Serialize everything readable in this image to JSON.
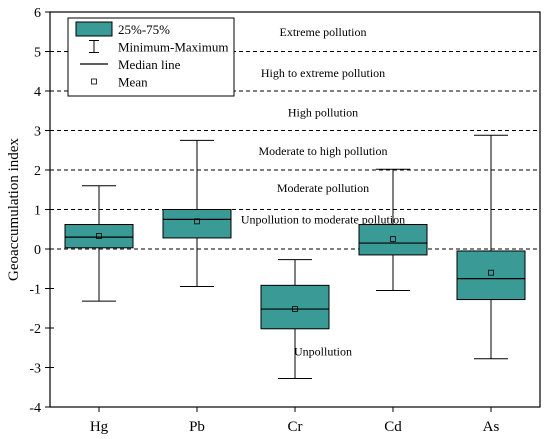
{
  "chart_data": {
    "type": "box",
    "ylabel": "Geoaccumulation index",
    "xlabel": "",
    "ylim": [
      -4,
      6
    ],
    "yticks": [
      -4,
      -3,
      -2,
      -1,
      0,
      1,
      2,
      3,
      4,
      5,
      6
    ],
    "categories": [
      "Hg",
      "Pb",
      "Cr",
      "Cd",
      "As"
    ],
    "series": [
      {
        "category": "Hg",
        "min": -1.32,
        "q1": 0.03,
        "median": 0.3,
        "q3": 0.62,
        "max": 1.6,
        "mean": 0.33
      },
      {
        "category": "Pb",
        "min": -0.95,
        "q1": 0.28,
        "median": 0.75,
        "q3": 1.0,
        "max": 2.75,
        "mean": 0.7
      },
      {
        "category": "Cr",
        "min": -3.28,
        "q1": -2.02,
        "median": -1.52,
        "q3": -0.92,
        "max": -0.27,
        "mean": -1.52
      },
      {
        "category": "Cd",
        "min": -1.05,
        "q1": -0.15,
        "median": 0.15,
        "q3": 0.62,
        "max": 2.02,
        "mean": 0.25
      },
      {
        "category": "As",
        "min": -2.78,
        "q1": -1.28,
        "median": -0.75,
        "q3": -0.05,
        "max": 2.88,
        "mean": -0.6
      }
    ],
    "thresholds": [
      0,
      1,
      2,
      3,
      4,
      5
    ],
    "zones": [
      {
        "label": "Extreme pollution",
        "y": 5.5
      },
      {
        "label": "High to extreme pollution",
        "y": 4.45
      },
      {
        "label": "High pollution",
        "y": 3.45
      },
      {
        "label": "Moderate to high pollution",
        "y": 2.48
      },
      {
        "label": "Moderate pollution",
        "y": 1.55
      },
      {
        "label": "Unpollution to moderate pollution",
        "y": 0.75
      },
      {
        "label": "Unpollution",
        "y": -2.6
      }
    ],
    "legend": {
      "position": "top-left",
      "items": [
        {
          "kind": "box",
          "label": "25%-75%"
        },
        {
          "kind": "whisker",
          "label": "Minimum-Maximum"
        },
        {
          "kind": "median",
          "label": "Median line"
        },
        {
          "kind": "mean",
          "label": "Mean"
        }
      ]
    },
    "colors": {
      "box_fill": "#3a9a96",
      "axis": "#000000"
    },
    "grid": false
  }
}
